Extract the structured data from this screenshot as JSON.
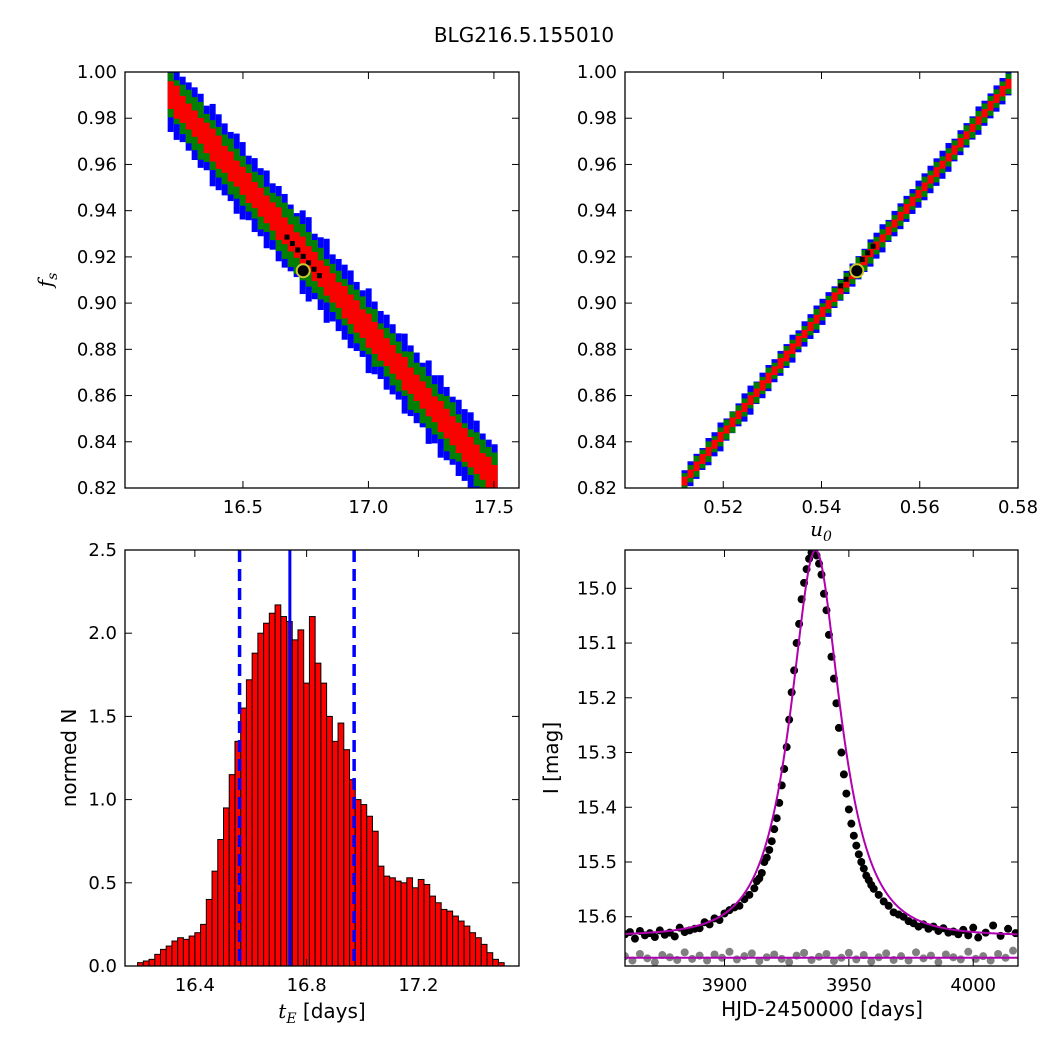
{
  "figure_title": "BLG216.5.155010",
  "colors": {
    "sigma1": "#ff0000",
    "sigma2": "#008000",
    "sigma3": "#0000ff",
    "best_region": "#000000",
    "best_marker_face": "#000000",
    "best_marker_edge": "#c8c832",
    "hist_bar": "#ff0000",
    "hist_edge": "#000000",
    "median_line": "#0000ff",
    "model_line": "#b000b0",
    "data_points": "#000000",
    "residual_points": "#808080"
  },
  "chart_data": [
    {
      "id": "tE-fs",
      "type": "heatmap",
      "title": "",
      "xlabel": "",
      "ylabel": "f_s",
      "ylabel_main": "f",
      "ylabel_sub": "s",
      "xlim": [
        16.03,
        17.6
      ],
      "ylim": [
        0.82,
        1.0
      ],
      "xticks": [
        "16.5",
        "17.0",
        "17.5"
      ],
      "yticks": [
        "0.82",
        "0.84",
        "0.86",
        "0.88",
        "0.90",
        "0.92",
        "0.94",
        "0.96",
        "0.98",
        "1.00"
      ],
      "ridge": {
        "x": [
          16.2,
          17.5
        ],
        "y": [
          0.99,
          0.822
        ]
      },
      "regions": [
        {
          "level": "3-sigma",
          "half_width": 0.016
        },
        {
          "level": "2-sigma",
          "half_width": 0.011
        },
        {
          "level": "1-sigma",
          "half_width": 0.0065
        }
      ],
      "best_fit": {
        "x": 16.74,
        "y": 0.914
      }
    },
    {
      "id": "u0-fs",
      "type": "heatmap",
      "title": "",
      "xlabel": "u_0",
      "xlabel_main": "u",
      "xlabel_sub": "0",
      "ylabel": "",
      "xlim": [
        0.5,
        0.58
      ],
      "ylim": [
        0.82,
        1.0
      ],
      "xticks": [
        "0.52",
        "0.54",
        "0.56",
        "0.58"
      ],
      "yticks": [
        "0.82",
        "0.84",
        "0.86",
        "0.88",
        "0.90",
        "0.92",
        "0.94",
        "0.96",
        "0.98",
        "1.00"
      ],
      "ridge": {
        "x": [
          0.5115,
          0.5775
        ],
        "y": [
          0.823,
          0.995
        ]
      },
      "regions": [
        {
          "level": "3-sigma",
          "half_width": 0.0055
        },
        {
          "level": "2-sigma",
          "half_width": 0.004
        },
        {
          "level": "1-sigma",
          "half_width": 0.002
        }
      ],
      "best_fit": {
        "x": 0.5472,
        "y": 0.914
      }
    },
    {
      "id": "tE-hist",
      "type": "bar",
      "title": "",
      "xlabel": "t_E [days]",
      "xlabel_main": "t",
      "xlabel_sub": "E",
      "xlabel_unit": " [days]",
      "ylabel": "normed N",
      "xlim": [
        16.15,
        17.56
      ],
      "ylim": [
        0,
        2.5
      ],
      "xticks": [
        "16.4",
        "16.8",
        "17.2"
      ],
      "yticks": [
        "0.0",
        "0.5",
        "1.0",
        "1.5",
        "2.0",
        "2.5"
      ],
      "bin_start": 16.195,
      "bin_width": 0.0205,
      "values": [
        0.02,
        0.03,
        0.04,
        0.07,
        0.1,
        0.12,
        0.15,
        0.17,
        0.16,
        0.18,
        0.2,
        0.25,
        0.4,
        0.57,
        0.76,
        0.95,
        1.15,
        1.35,
        1.55,
        1.72,
        1.88,
        2.0,
        2.06,
        2.12,
        2.17,
        2.1,
        2.07,
        1.96,
        2.02,
        1.7,
        2.1,
        1.82,
        1.7,
        1.5,
        1.35,
        1.46,
        1.3,
        1.12,
        1.0,
        0.97,
        0.9,
        0.81,
        0.6,
        0.54,
        0.53,
        0.51,
        0.5,
        0.53,
        0.47,
        0.52,
        0.49,
        0.42,
        0.38,
        0.34,
        0.33,
        0.3,
        0.27,
        0.24,
        0.2,
        0.17,
        0.13,
        0.08,
        0.04,
        0.02
      ],
      "median": 16.74,
      "interval": [
        16.56,
        16.97
      ]
    },
    {
      "id": "lightcurve",
      "type": "scatter",
      "title": "",
      "xlabel": "HJD-2450000 [days]",
      "ylabel": "I [mag]",
      "xlim": [
        3860,
        4018
      ],
      "ylim": [
        15.69,
        14.93
      ],
      "yaxis_inverted": true,
      "xticks": [
        "3900",
        "3950",
        "4000"
      ],
      "yticks": [
        "15.0",
        "15.1",
        "15.2",
        "15.3",
        "15.4",
        "15.5",
        "15.6"
      ],
      "model": {
        "t0": 3936.6,
        "tE": 16.74,
        "u0": 0.5472,
        "fs": 0.914,
        "base_mag": 15.635,
        "peak_mag": 14.93
      },
      "residual_baseline": 15.675,
      "series": [
        {
          "name": "",
          "role": "data",
          "x": [
            3860,
            3862,
            3864,
            3866,
            3868,
            3870,
            3872,
            3874,
            3876,
            3878,
            3880,
            3882,
            3884,
            3886,
            3888,
            3890,
            3892,
            3894,
            3896,
            3898,
            3900,
            3902,
            3904,
            3906,
            3908,
            3910,
            3912,
            3913,
            3914,
            3915,
            3916,
            3917,
            3918,
            3919,
            3920,
            3921,
            3922,
            3923,
            3924,
            3925,
            3926,
            3927,
            3928,
            3929,
            3930,
            3931,
            3932,
            3933,
            3934,
            3935,
            3936,
            3937,
            3938,
            3939,
            3940,
            3941,
            3942,
            3943,
            3944,
            3945,
            3946,
            3947,
            3948,
            3949,
            3950,
            3951,
            3952,
            3953,
            3954,
            3955,
            3956,
            3957,
            3958,
            3959,
            3960,
            3962,
            3964,
            3966,
            3968,
            3970,
            3972,
            3974,
            3976,
            3978,
            3980,
            3982,
            3984,
            3986,
            3988,
            3990,
            3992,
            3994,
            3996,
            3998,
            4000,
            4002,
            4005,
            4008,
            4011,
            4014,
            4017
          ],
          "y": [
            15.632,
            15.628,
            15.64,
            15.626,
            15.634,
            15.63,
            15.637,
            15.625,
            15.633,
            15.629,
            15.636,
            15.62,
            15.628,
            15.625,
            15.622,
            15.621,
            15.61,
            15.614,
            15.603,
            15.606,
            15.594,
            15.588,
            15.583,
            15.58,
            15.568,
            15.56,
            15.548,
            15.535,
            15.53,
            15.52,
            15.5,
            15.492,
            15.478,
            15.462,
            15.44,
            15.42,
            15.392,
            15.36,
            15.33,
            15.29,
            15.24,
            15.19,
            15.15,
            15.1,
            15.065,
            15.02,
            14.99,
            14.965,
            14.946,
            14.935,
            14.932,
            14.94,
            14.955,
            14.975,
            15.01,
            15.04,
            15.085,
            15.125,
            15.165,
            15.21,
            15.255,
            15.3,
            15.34,
            15.375,
            15.404,
            15.43,
            15.452,
            15.47,
            15.486,
            15.5,
            15.512,
            15.525,
            15.533,
            15.542,
            15.549,
            15.56,
            15.572,
            15.58,
            15.592,
            15.596,
            15.6,
            15.608,
            15.612,
            15.618,
            15.614,
            15.622,
            15.618,
            15.626,
            15.621,
            15.629,
            15.627,
            15.632,
            15.624,
            15.634,
            15.62,
            15.638,
            15.629,
            15.616,
            15.635,
            15.622,
            15.63
          ]
        },
        {
          "name": "",
          "role": "residuals",
          "x": [
            3860,
            3863,
            3866,
            3869,
            3872,
            3875,
            3878,
            3881,
            3884,
            3887,
            3890,
            3893,
            3896,
            3899,
            3902,
            3905,
            3908,
            3911,
            3914,
            3917,
            3920,
            3923,
            3926,
            3929,
            3932,
            3935,
            3938,
            3941,
            3944,
            3947,
            3950,
            3953,
            3956,
            3959,
            3962,
            3965,
            3968,
            3971,
            3974,
            3977,
            3980,
            3983,
            3986,
            3989,
            3992,
            3995,
            3998,
            4001,
            4004,
            4007,
            4010,
            4013,
            4016
          ],
          "y": [
            15.672,
            15.68,
            15.668,
            15.676,
            15.683,
            15.67,
            15.674,
            15.679,
            15.665,
            15.677,
            15.671,
            15.68,
            15.669,
            15.675,
            15.664,
            15.678,
            15.672,
            15.667,
            15.681,
            15.674,
            15.669,
            15.677,
            15.683,
            15.671,
            15.666,
            15.679,
            15.673,
            15.668,
            15.681,
            15.675,
            15.666,
            15.678,
            15.67,
            15.682,
            15.674,
            15.667,
            15.679,
            15.672,
            15.68,
            15.665,
            15.676,
            15.671,
            15.683,
            15.669,
            15.674,
            15.678,
            15.664,
            15.677,
            15.672,
            15.68,
            15.668,
            15.675,
            15.662
          ]
        }
      ]
    }
  ]
}
